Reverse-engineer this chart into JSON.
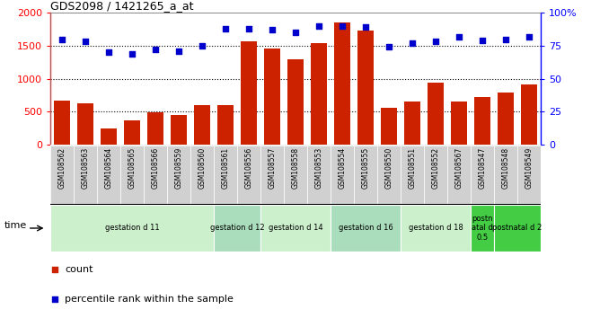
{
  "title": "GDS2098 / 1421265_a_at",
  "samples": [
    "GSM108562",
    "GSM108563",
    "GSM108564",
    "GSM108565",
    "GSM108566",
    "GSM108559",
    "GSM108560",
    "GSM108561",
    "GSM108556",
    "GSM108557",
    "GSM108558",
    "GSM108553",
    "GSM108554",
    "GSM108555",
    "GSM108550",
    "GSM108551",
    "GSM108552",
    "GSM108567",
    "GSM108547",
    "GSM108548",
    "GSM108549"
  ],
  "counts": [
    670,
    625,
    250,
    370,
    490,
    450,
    600,
    600,
    1570,
    1460,
    1300,
    1540,
    1850,
    1730,
    560,
    660,
    940,
    660,
    720,
    790,
    910
  ],
  "percentiles": [
    80,
    78,
    70,
    69,
    72,
    71,
    75,
    88,
    88,
    87,
    85,
    90,
    90,
    89,
    74,
    77,
    78,
    82,
    79,
    80,
    82
  ],
  "groups": [
    {
      "label": "gestation d 11",
      "start": 0,
      "end": 7,
      "color": "#ccf0cc"
    },
    {
      "label": "gestation d 12",
      "start": 7,
      "end": 9,
      "color": "#aaddbb"
    },
    {
      "label": "gestation d 14",
      "start": 9,
      "end": 12,
      "color": "#ccf0cc"
    },
    {
      "label": "gestation d 16",
      "start": 12,
      "end": 15,
      "color": "#aaddbb"
    },
    {
      "label": "gestation d 18",
      "start": 15,
      "end": 18,
      "color": "#ccf0cc"
    },
    {
      "label": "postn\natal d\n0.5",
      "start": 18,
      "end": 19,
      "color": "#44cc44"
    },
    {
      "label": "postnatal d 2",
      "start": 19,
      "end": 21,
      "color": "#44cc44"
    }
  ],
  "bar_color": "#cc2200",
  "dot_color": "#0000cc",
  "left_ylim": [
    0,
    2000
  ],
  "right_ylim": [
    0,
    100
  ],
  "left_yticks": [
    0,
    500,
    1000,
    1500,
    2000
  ],
  "right_yticks": [
    0,
    25,
    50,
    75,
    100
  ],
  "right_yticklabels": [
    "0",
    "25",
    "50",
    "75",
    "100%"
  ],
  "grid_values": [
    500,
    1000,
    1500
  ],
  "dot_size": 18,
  "legend_count_label": "count",
  "legend_pct_label": "percentile rank within the sample",
  "time_label": "time",
  "bg_color": "#f0f0f0",
  "tick_bg_color": "#d0d0d0"
}
